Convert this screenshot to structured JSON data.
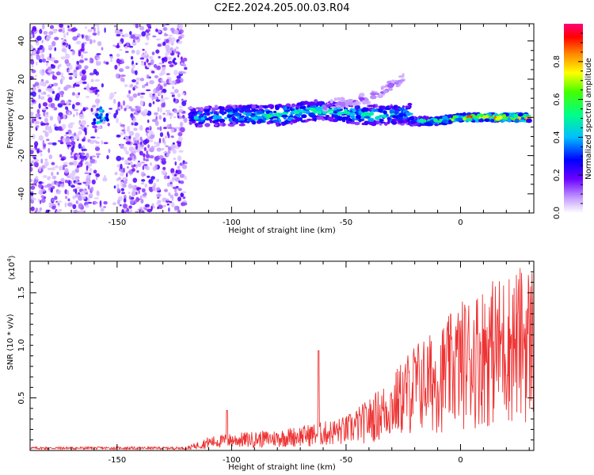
{
  "title": "C2E2.2024.205.00.03.R04",
  "chart_data": [
    {
      "type": "heatmap",
      "xlabel": "Height of straight line (km)",
      "ylabel": "Frequency (Hz)",
      "xlim": [
        -188,
        32
      ],
      "ylim": [
        -50,
        49
      ],
      "xticks": [
        -150,
        -100,
        -50,
        0
      ],
      "xtick_labels": [
        "-150",
        "-100",
        "-50",
        "0"
      ],
      "yticks": [
        -40,
        -20,
        0,
        20,
        40
      ],
      "ytick_labels": [
        "-40",
        "-20",
        "0",
        "20",
        "40"
      ],
      "noise_region_x": [
        -188,
        -120
      ],
      "signal": [
        {
          "name": "main band",
          "x": [
            -118,
            -100,
            -80,
            -60,
            -40,
            -22
          ],
          "y": [
            0,
            1,
            1,
            4,
            1,
            2
          ],
          "amplitude": [
            0.4,
            0.45,
            0.55,
            0.5,
            0.5,
            0.45
          ]
        },
        {
          "name": "upper harmonic",
          "x": [
            -60,
            -50,
            -40,
            -30,
            -25
          ],
          "y": [
            6,
            8,
            10,
            17,
            20
          ],
          "amplitude": [
            0.15,
            0.15,
            0.15,
            0.15,
            0.1
          ]
        },
        {
          "name": "lower band",
          "x": [
            -22,
            -10,
            0,
            10,
            20,
            30
          ],
          "y": [
            -2,
            -2,
            0,
            0,
            0,
            0
          ],
          "amplitude": [
            0.5,
            0.6,
            0.85,
            0.9,
            0.95,
            0.95
          ]
        }
      ],
      "colorbar": {
        "label": "Normalized spectral amplitude",
        "range": [
          0,
          1
        ],
        "ticks": [
          0,
          0.2,
          0.4,
          0.6,
          0.8
        ],
        "tick_labels": [
          "0.0",
          "0.2",
          "0.4",
          "0.6",
          "0.8"
        ]
      }
    },
    {
      "type": "line",
      "xlabel": "Height of straight line (km)",
      "ylabel": "SNR (10 * v/v)",
      "multiplier_label": "(x10",
      "multiplier_exp": "4",
      "multiplier_close": ")",
      "xlim": [
        -188,
        32
      ],
      "ylim": [
        0,
        1.8
      ],
      "xticks": [
        -150,
        -100,
        -50,
        0
      ],
      "xtick_labels": [
        "-150",
        "-100",
        "-50",
        "0"
      ],
      "yticks": [
        0.5,
        1.0,
        1.5
      ],
      "ytick_labels": [
        "0.5",
        "1.0",
        "1.5"
      ],
      "color": "#ee3333",
      "envelope_x": [
        -188,
        -160,
        -120,
        -110,
        -100,
        -80,
        -60,
        -50,
        -40,
        -30,
        -20,
        -10,
        0,
        10,
        20,
        32
      ],
      "envelope_y": [
        0.02,
        0.03,
        0.03,
        0.12,
        0.15,
        0.18,
        0.25,
        0.3,
        0.45,
        0.65,
        0.95,
        1.05,
        1.3,
        1.45,
        1.55,
        1.65
      ]
    }
  ]
}
